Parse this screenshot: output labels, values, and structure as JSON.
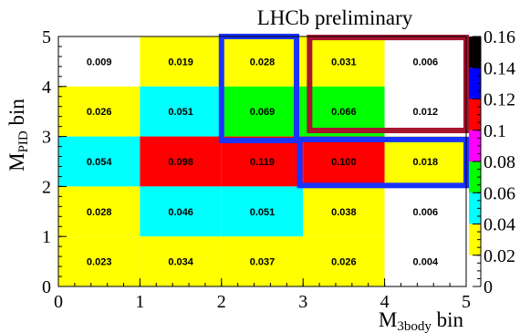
{
  "chart_data": {
    "type": "heatmap",
    "title": "LHCb preliminary",
    "xlabel": "M",
    "xlabel_sub": "3body",
    "xlabel_suffix": " bin",
    "ylabel": "M",
    "ylabel_sub": "PID",
    "ylabel_suffix": " bin",
    "x_ticks": [
      "0",
      "1",
      "2",
      "3",
      "4",
      "5"
    ],
    "y_ticks": [
      "0",
      "1",
      "2",
      "3",
      "4",
      "5"
    ],
    "xlim": [
      0,
      5
    ],
    "ylim": [
      0,
      5
    ],
    "z_ticks": [
      "0",
      "0.02",
      "0.04",
      "0.06",
      "0.08",
      "0.1",
      "0.12",
      "0.14",
      "0.16"
    ],
    "zlim": [
      0,
      0.16
    ],
    "palette": [
      "#ffffff",
      "#ffff00",
      "#00ffff",
      "#00ff00",
      "#ff00ff",
      "#ff0000",
      "#0000ff",
      "#000000"
    ],
    "cells": [
      {
        "x": 0,
        "y": 4,
        "value": 0.009,
        "label": "0.009",
        "color": "#ffffff"
      },
      {
        "x": 1,
        "y": 4,
        "value": 0.019,
        "label": "0.019",
        "color": "#ffff00"
      },
      {
        "x": 2,
        "y": 4,
        "value": 0.028,
        "label": "0.028",
        "color": "#ffff00"
      },
      {
        "x": 3,
        "y": 4,
        "value": 0.031,
        "label": "0.031",
        "color": "#ffff00"
      },
      {
        "x": 4,
        "y": 4,
        "value": 0.006,
        "label": "0.006",
        "color": "#ffffff"
      },
      {
        "x": 0,
        "y": 3,
        "value": 0.026,
        "label": "0.026",
        "color": "#ffff00"
      },
      {
        "x": 1,
        "y": 3,
        "value": 0.051,
        "label": "0.051",
        "color": "#00ffff"
      },
      {
        "x": 2,
        "y": 3,
        "value": 0.069,
        "label": "0.069",
        "color": "#00ff00"
      },
      {
        "x": 3,
        "y": 3,
        "value": 0.066,
        "label": "0.066",
        "color": "#00ff00"
      },
      {
        "x": 4,
        "y": 3,
        "value": 0.012,
        "label": "0.012",
        "color": "#ffffff"
      },
      {
        "x": 0,
        "y": 2,
        "value": 0.054,
        "label": "0.054",
        "color": "#00ffff"
      },
      {
        "x": 1,
        "y": 2,
        "value": 0.098,
        "label": "0.098",
        "color": "#ff0000"
      },
      {
        "x": 2,
        "y": 2,
        "value": 0.119,
        "label": "0.119",
        "color": "#ff0000"
      },
      {
        "x": 3,
        "y": 2,
        "value": 0.1,
        "label": "0.100",
        "color": "#ff0000"
      },
      {
        "x": 4,
        "y": 2,
        "value": 0.018,
        "label": "0.018",
        "color": "#ffff00"
      },
      {
        "x": 0,
        "y": 1,
        "value": 0.028,
        "label": "0.028",
        "color": "#ffff00"
      },
      {
        "x": 1,
        "y": 1,
        "value": 0.046,
        "label": "0.046",
        "color": "#00ffff"
      },
      {
        "x": 2,
        "y": 1,
        "value": 0.051,
        "label": "0.051",
        "color": "#00ffff"
      },
      {
        "x": 3,
        "y": 1,
        "value": 0.038,
        "label": "0.038",
        "color": "#ffff00"
      },
      {
        "x": 4,
        "y": 1,
        "value": 0.006,
        "label": "0.006",
        "color": "#ffffff"
      },
      {
        "x": 0,
        "y": 0,
        "value": 0.023,
        "label": "0.023",
        "color": "#ffff00"
      },
      {
        "x": 1,
        "y": 0,
        "value": 0.034,
        "label": "0.034",
        "color": "#ffff00"
      },
      {
        "x": 2,
        "y": 0,
        "value": 0.037,
        "label": "0.037",
        "color": "#ffff00"
      },
      {
        "x": 3,
        "y": 0,
        "value": 0.026,
        "label": "0.026",
        "color": "#ffff00"
      },
      {
        "x": 4,
        "y": 0,
        "value": 0.004,
        "label": "0.004",
        "color": "#ffffff"
      }
    ],
    "highlight_boxes": [
      {
        "x0": 2,
        "x1": 2.92,
        "y0": 2.92,
        "y1": 5,
        "color": "#1a33ff"
      },
      {
        "x0": 3.08,
        "x1": 5,
        "y0": 3.12,
        "y1": 4.98,
        "color": "#a6142e"
      },
      {
        "x0": 2.96,
        "x1": 5,
        "y0": 2.02,
        "y1": 2.94,
        "color": "#1a33ff"
      }
    ]
  }
}
